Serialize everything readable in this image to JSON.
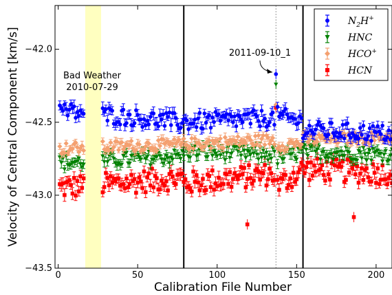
{
  "chart_data": {
    "type": "scatter",
    "xlabel": "Calibration File Number",
    "ylabel": "Velocity of Central Component [km/s]",
    "xlim": [
      -2,
      210
    ],
    "ylim": [
      -43.5,
      -41.7
    ],
    "x_ticks": [
      0,
      50,
      100,
      150,
      200
    ],
    "x_tick_labels": [
      "0",
      "50",
      "100",
      "150",
      "200"
    ],
    "y_ticks": [
      -42.0,
      -42.5,
      -43.0,
      -43.5
    ],
    "y_tick_labels": [
      "−42.0",
      "−42.5",
      "−43.0",
      "−43.5"
    ],
    "grid": false,
    "legend_position": "top-right",
    "vertical_lines": [
      {
        "x": 79,
        "style": "solid"
      },
      {
        "x": 154,
        "style": "solid"
      },
      {
        "x": 137,
        "style": "dotted"
      }
    ],
    "shaded_band": {
      "x_from": 17,
      "x_to": 27,
      "color": "#ffffc0"
    },
    "annotations": [
      {
        "text": "Bad Weather",
        "x": 17,
        "y": -42.19
      },
      {
        "text": "2010-07-29",
        "x": 17,
        "y": -42.27
      },
      {
        "text": "2011-09-10_1",
        "x": 128,
        "y": -42.03,
        "arrow_to": [
          137,
          -42.17
        ]
      }
    ],
    "series": [
      {
        "name": "N2H+",
        "label_main": "N",
        "label_sub": "2",
        "label_main2": "H",
        "label_sup": "+",
        "color": "#0000ff",
        "marker": "circle",
        "base": -42.47,
        "spread": 0.06,
        "err": 0.035,
        "segments": [
          [
            -42.42,
            -42.5
          ],
          [
            -42.5,
            -42.47
          ],
          [
            -42.45,
            -42.5
          ],
          [
            -42.55,
            -42.58
          ]
        ],
        "outliers": [
          {
            "x": 137,
            "y": -42.17
          }
        ]
      },
      {
        "name": "HNC",
        "color": "#008000",
        "marker": "triangle-down",
        "base": -42.72,
        "spread": 0.05,
        "err": 0.03,
        "segments": [
          [
            -42.78,
            -42.73
          ],
          [
            -42.7,
            -42.72
          ],
          [
            -42.75,
            -42.7
          ],
          [
            -42.7,
            -42.72
          ]
        ],
        "outliers": [
          {
            "x": 137,
            "y": -42.24
          }
        ]
      },
      {
        "name": "HCO+",
        "label_main": "HCO",
        "label_sup": "+",
        "color": "#f4a070",
        "marker": "diamond",
        "base": -42.65,
        "spread": 0.04,
        "err": 0.025,
        "segments": [
          [
            -42.68,
            -42.65
          ],
          [
            -42.65,
            -42.62
          ],
          [
            -42.66,
            -42.64
          ],
          [
            -42.62,
            -42.6
          ]
        ],
        "outliers": [
          {
            "x": 137,
            "y": -42.38
          }
        ]
      },
      {
        "name": "HCN",
        "color": "#ff0000",
        "marker": "square",
        "base": -42.9,
        "spread": 0.08,
        "err": 0.035,
        "segments": [
          [
            -42.95,
            -42.88
          ],
          [
            -42.92,
            -42.85
          ],
          [
            -42.95,
            -42.82
          ],
          [
            -42.82,
            -42.85
          ]
        ],
        "outliers": [
          {
            "x": 137,
            "y": -42.4
          },
          {
            "x": 119,
            "y": -43.2
          },
          {
            "x": 186,
            "y": -43.15
          }
        ]
      }
    ],
    "n_points": 210
  }
}
